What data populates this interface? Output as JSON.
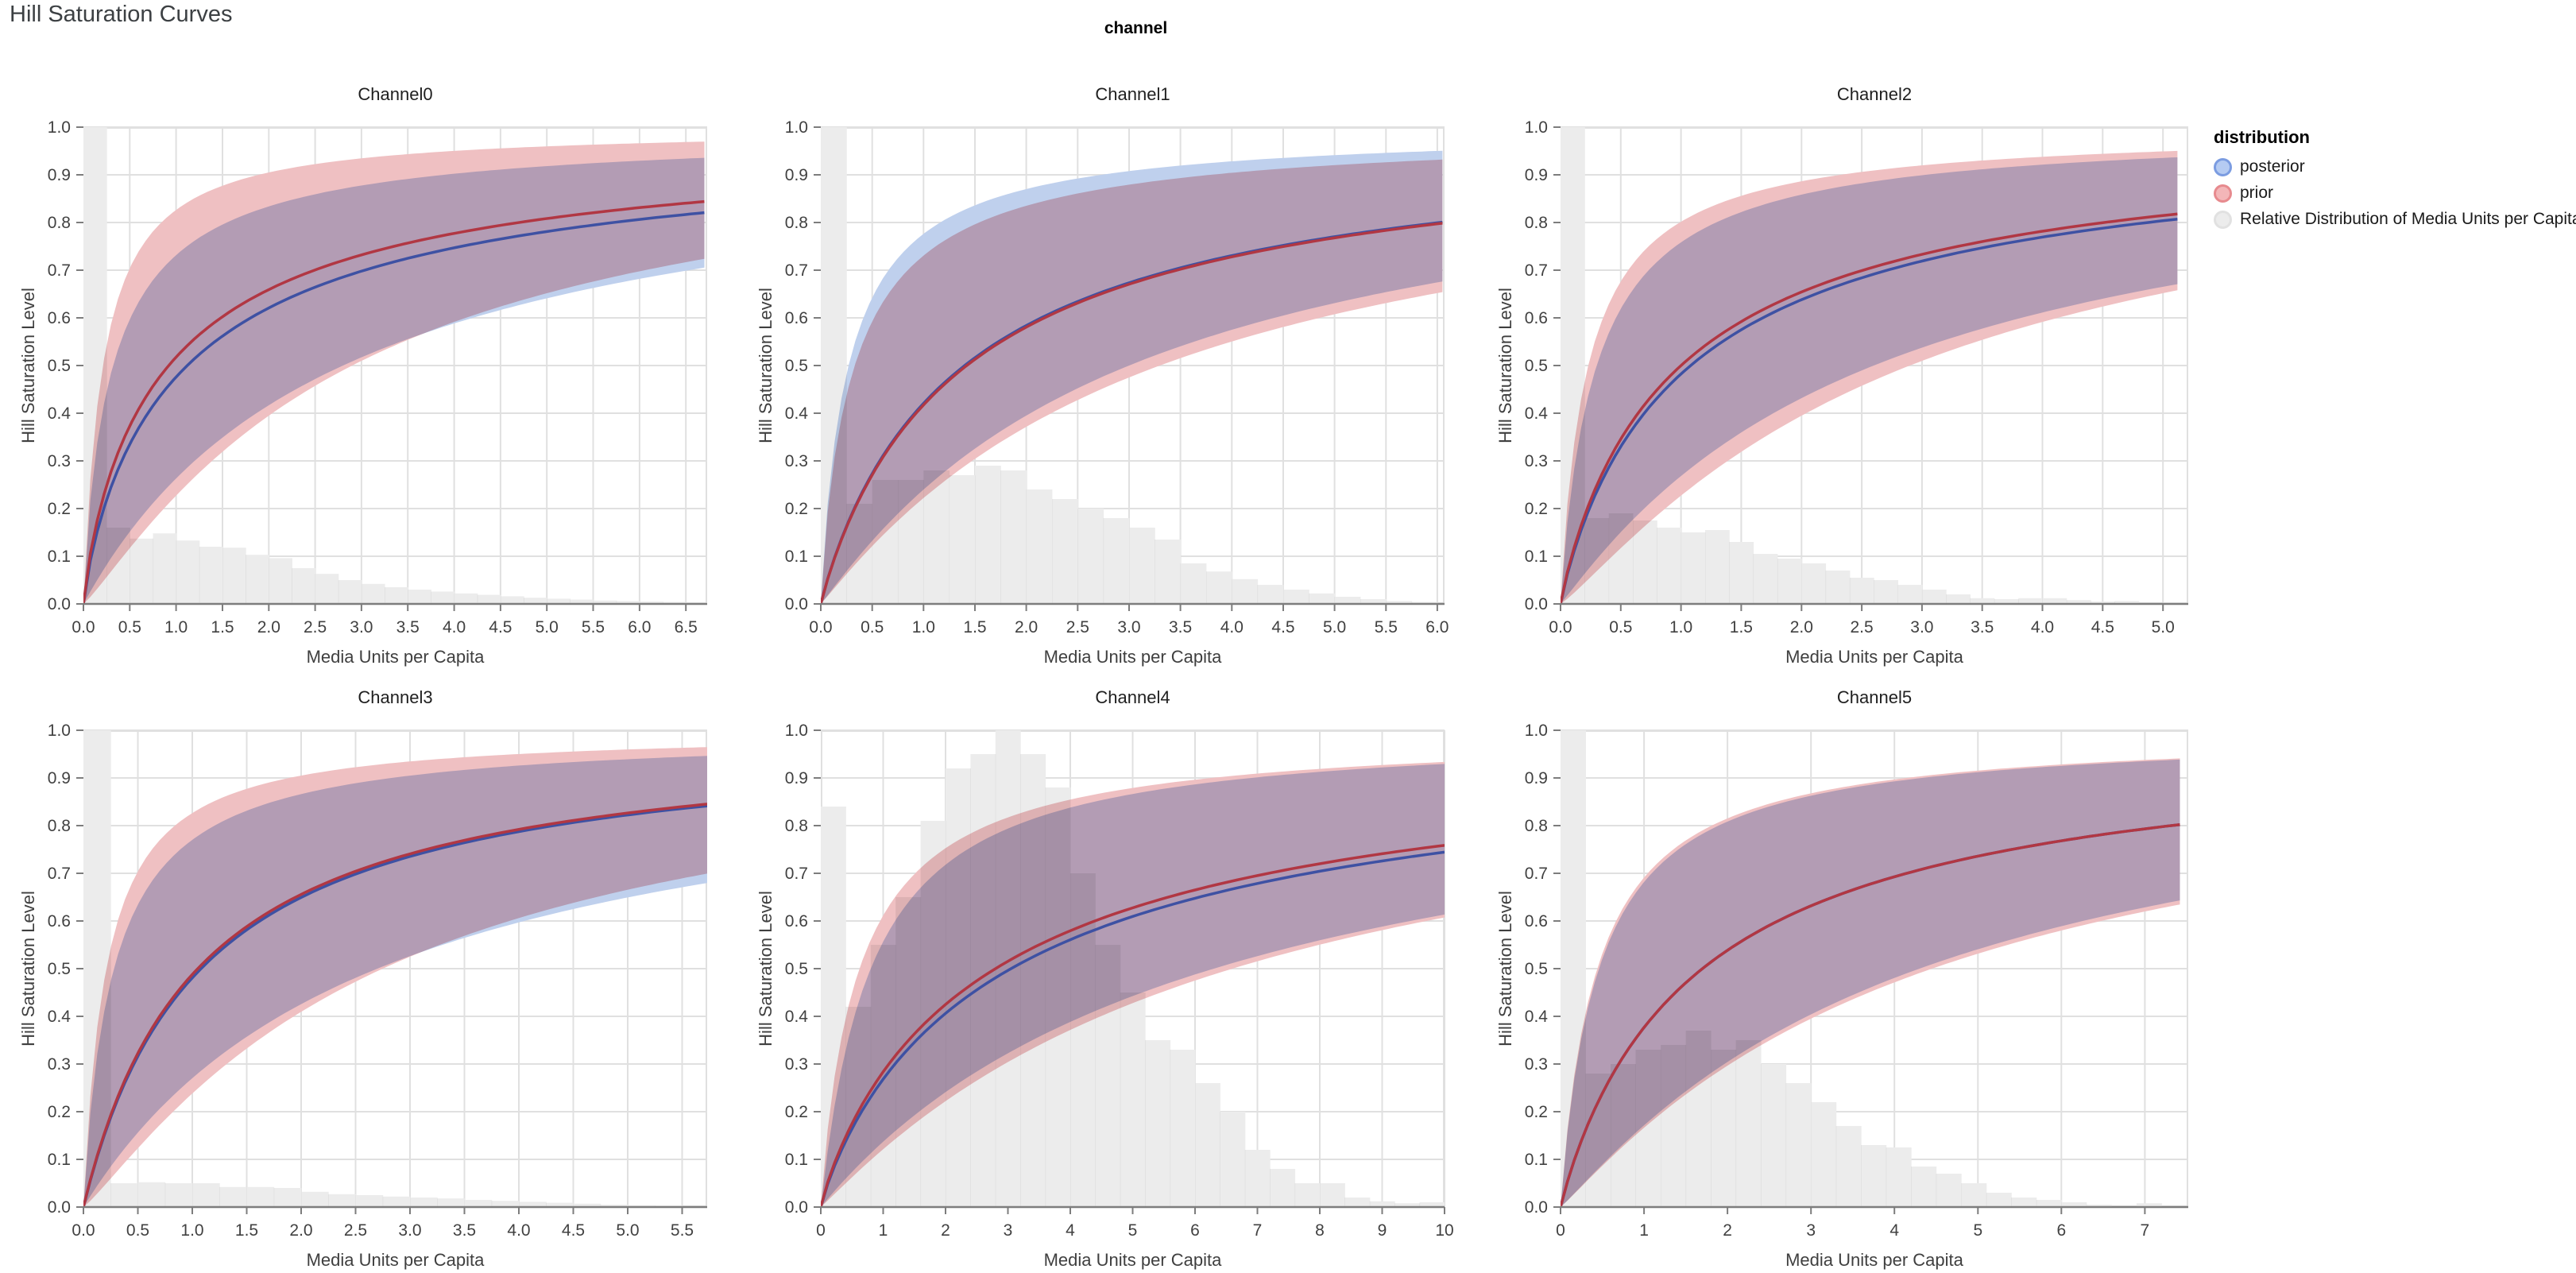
{
  "title": "Hill Saturation Curves",
  "facet_header": "channel",
  "legend": {
    "title": "distribution",
    "items": [
      {
        "label": "posterior",
        "fill": "#b5cbf2",
        "stroke": "#7b9ce1"
      },
      {
        "label": "prior",
        "fill": "#f3b6b8",
        "stroke": "#e78a8e"
      },
      {
        "label": "Relative Distribution of Media Units per Capita",
        "fill": "#ececec",
        "stroke": "#e1e1e1"
      }
    ]
  },
  "colors": {
    "posterior_line": "#3e51a3",
    "prior_line": "#b13743",
    "posterior_band": "#bfd0ed",
    "prior_band": "#efc0c2",
    "histogram": "#ececec",
    "gridline": "#e0e0e0",
    "axis_line": "#7d7d7d",
    "tick_text": "#414141",
    "axis_title_text": "#3f3f3f"
  },
  "chart_data": {
    "type": "line",
    "title": "Hill Saturation Curves",
    "xlabel": "Media Units per Capita",
    "ylabel": "Hill Saturation Level",
    "ylim": [
      0.0,
      1.0
    ],
    "y_tick_step": 0.1,
    "legend_position": "top-right",
    "grid": true,
    "curve_model": "hill: y = 1/(1+(K/x)^s); series params are [K, s]",
    "subplots": [
      {
        "name": "Channel0",
        "x_tick_max": 6.5,
        "x_tick_step": 0.5,
        "x_right": 6.73,
        "x_data_max": 6.7,
        "series": {
          "posterior": {
            "median": [
              1.12,
              0.85
            ],
            "upper": [
              0.32,
              0.88
            ],
            "lower": [
              2.8,
              1.0
            ]
          },
          "prior": {
            "median": [
              0.92,
              0.85
            ],
            "upper": [
              0.21,
              1.0
            ],
            "lower": [
              2.9,
              1.15
            ]
          }
        },
        "median_at_right": {
          "posterior": 0.82,
          "prior": 0.845
        },
        "histogram": {
          "bin_width": 0.25,
          "heights": [
            1.0,
            0.16,
            0.137,
            0.148,
            0.133,
            0.12,
            0.118,
            0.103,
            0.096,
            0.075,
            0.063,
            0.05,
            0.042,
            0.035,
            0.03,
            0.026,
            0.022,
            0.019,
            0.016,
            0.013,
            0.011,
            0.009,
            0.007,
            0.006,
            0.005,
            0.004,
            0.003
          ]
        }
      },
      {
        "name": "Channel1",
        "x_tick_max": 6.0,
        "x_tick_step": 0.5,
        "x_right": 6.07,
        "x_data_max": 6.05,
        "series": {
          "posterior": {
            "median": [
              1.4,
              0.95
            ],
            "upper": [
              0.27,
              0.95
            ],
            "lower": [
              3.0,
              1.05
            ]
          },
          "prior": {
            "median": [
              1.42,
              0.95
            ],
            "upper": [
              0.33,
              0.9
            ],
            "lower": [
              3.3,
              1.05
            ]
          }
        },
        "median_at_right": {
          "posterior": 0.8,
          "prior": 0.795
        },
        "histogram": {
          "bin_width": 0.25,
          "heights": [
            1.0,
            0.21,
            0.26,
            0.26,
            0.28,
            0.27,
            0.29,
            0.28,
            0.24,
            0.22,
            0.2,
            0.18,
            0.16,
            0.135,
            0.085,
            0.068,
            0.052,
            0.04,
            0.03,
            0.022,
            0.015,
            0.01,
            0.006,
            0.004
          ]
        }
      },
      {
        "name": "Channel2",
        "x_tick_max": 5.0,
        "x_tick_step": 0.5,
        "x_right": 5.21,
        "x_data_max": 5.12,
        "series": {
          "posterior": {
            "median": [
              1.08,
              0.92
            ],
            "upper": [
              0.3,
              0.95
            ],
            "lower": [
              2.6,
              1.05
            ]
          },
          "prior": {
            "median": [
              1.0,
              0.92
            ],
            "upper": [
              0.23,
              0.95
            ],
            "lower": [
              2.9,
              1.15
            ]
          }
        },
        "median_at_right": {
          "posterior": 0.81,
          "prior": 0.82
        },
        "histogram": {
          "bin_width": 0.2,
          "heights": [
            1.0,
            0.18,
            0.19,
            0.175,
            0.16,
            0.15,
            0.155,
            0.13,
            0.105,
            0.095,
            0.085,
            0.07,
            0.055,
            0.05,
            0.04,
            0.03,
            0.02,
            0.012,
            0.01,
            0.012,
            0.012,
            0.008,
            0.005,
            0.006,
            0.0,
            0.003
          ]
        }
      },
      {
        "name": "Channel3",
        "x_tick_max": 5.5,
        "x_tick_step": 0.5,
        "x_right": 5.73,
        "x_data_max": 5.73,
        "series": {
          "posterior": {
            "median": [
              1.08,
              1.0
            ],
            "upper": [
              0.28,
              0.95
            ],
            "lower": [
              2.7,
              1.0
            ]
          },
          "prior": {
            "median": [
              1.05,
              1.0
            ],
            "upper": [
              0.21,
              1.0
            ],
            "lower": [
              2.75,
              1.15
            ]
          }
        },
        "median_at_right": {
          "posterior": 0.84,
          "prior": 0.845
        },
        "histogram": {
          "bin_width": 0.25,
          "heights": [
            1.0,
            0.05,
            0.052,
            0.05,
            0.05,
            0.042,
            0.042,
            0.04,
            0.032,
            0.027,
            0.025,
            0.022,
            0.02,
            0.018,
            0.015,
            0.013,
            0.011,
            0.009,
            0.007,
            0.005,
            0.004,
            0.003,
            0.002,
            0.002
          ]
        }
      },
      {
        "name": "Channel4",
        "x_tick_max": 10,
        "x_tick_step": 1,
        "x_right": 10.0,
        "x_data_max": 10.0,
        "series": {
          "posterior": {
            "median": [
              3.05,
              0.9
            ],
            "upper": [
              0.8,
              1.02
            ],
            "lower": [
              6.3,
              1.0
            ]
          },
          "prior": {
            "median": [
              2.8,
              0.9
            ],
            "upper": [
              0.62,
              0.95
            ],
            "lower": [
              6.6,
              1.05
            ]
          }
        },
        "median_at_right": {
          "posterior": 0.75,
          "prior": 0.765
        },
        "histogram": {
          "bin_width": 0.4,
          "heights": [
            0.84,
            0.42,
            0.55,
            0.65,
            0.81,
            0.92,
            0.95,
            1.0,
            0.95,
            0.88,
            0.7,
            0.55,
            0.45,
            0.35,
            0.33,
            0.26,
            0.2,
            0.12,
            0.08,
            0.05,
            0.05,
            0.02,
            0.012,
            0.008,
            0.01
          ]
        }
      },
      {
        "name": "Channel5",
        "x_tick_max": 7,
        "x_tick_step": 1,
        "x_right": 7.52,
        "x_data_max": 7.42,
        "series": {
          "posterior": {
            "median": [
              1.7,
              0.95
            ],
            "upper": [
              0.46,
              0.98
            ],
            "lower": [
              4.3,
              1.08
            ]
          },
          "prior": {
            "median": [
              1.7,
              0.95
            ],
            "upper": [
              0.44,
              0.98
            ],
            "lower": [
              4.45,
              1.08
            ]
          }
        },
        "median_at_right": {
          "posterior": 0.805,
          "prior": 0.805
        },
        "histogram": {
          "bin_width": 0.3,
          "heights": [
            1.0,
            0.28,
            0.3,
            0.33,
            0.34,
            0.37,
            0.33,
            0.35,
            0.3,
            0.26,
            0.22,
            0.17,
            0.13,
            0.125,
            0.085,
            0.07,
            0.05,
            0.03,
            0.02,
            0.015,
            0.01,
            0.005,
            0.002,
            0.008,
            0.002
          ]
        }
      }
    ]
  }
}
